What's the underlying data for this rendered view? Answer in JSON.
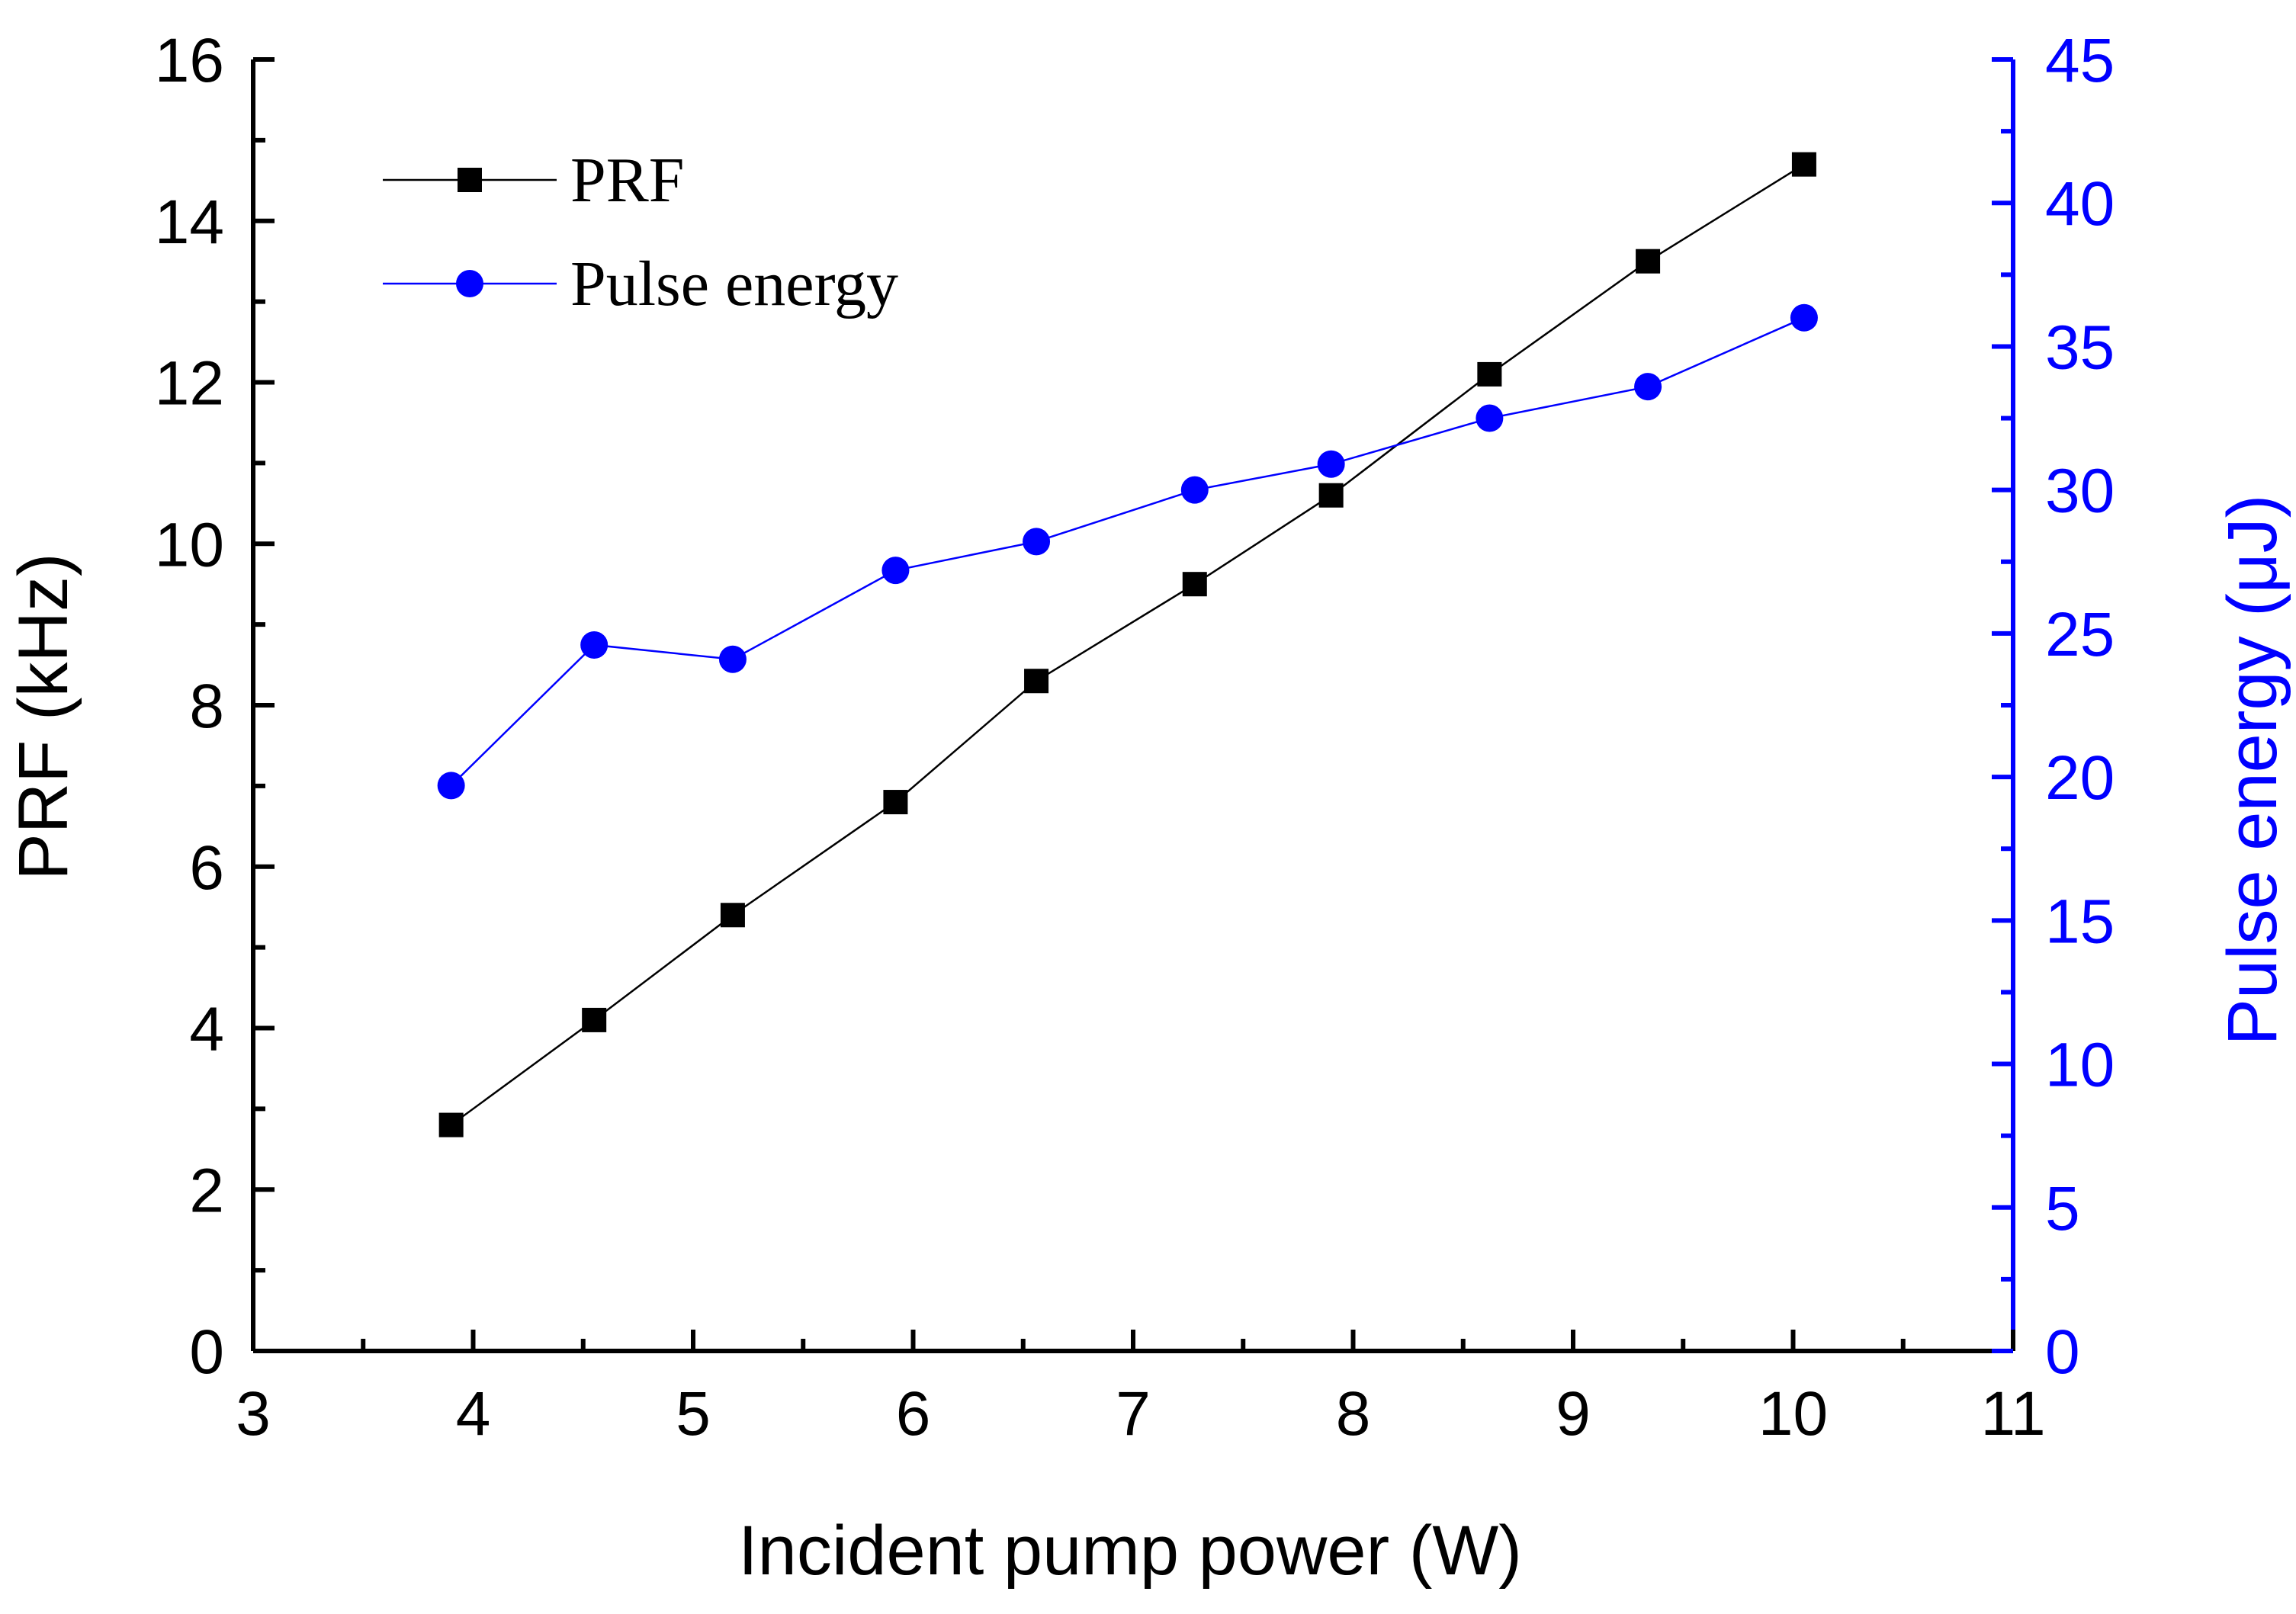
{
  "chart_data": {
    "type": "line",
    "title": "",
    "xlabel": "Incident pump power (W)",
    "ylabel": "PRF (kHz)",
    "y2label": "Pulse energy (μJ)",
    "xlim": [
      3,
      11
    ],
    "ylim": [
      0,
      16
    ],
    "y2lim": [
      0,
      45
    ],
    "x_ticks": [
      "3",
      "4",
      "5",
      "6",
      "7",
      "8",
      "9",
      "10",
      "11"
    ],
    "y_ticks": [
      "0",
      "2",
      "4",
      "6",
      "8",
      "10",
      "12",
      "14",
      "16"
    ],
    "y2_ticks": [
      "0",
      "5",
      "10",
      "15",
      "20",
      "25",
      "30",
      "35",
      "40",
      "45"
    ],
    "legend_position": "top-left",
    "colors": {
      "prf": "#000000",
      "energy": "#0000ff",
      "axis": "#000000",
      "right_axis": "#0000ff"
    },
    "series": [
      {
        "name": "PRF",
        "axis": "left",
        "marker": "square",
        "x": [
          3.9,
          4.55,
          5.18,
          5.92,
          6.56,
          7.28,
          7.9,
          8.62,
          9.34,
          10.05
        ],
        "values": [
          2.8,
          4.1,
          5.4,
          6.8,
          8.3,
          9.5,
          10.6,
          12.1,
          13.5,
          14.7
        ]
      },
      {
        "name": "Pulse energy",
        "axis": "right",
        "marker": "circle",
        "x": [
          3.9,
          4.55,
          5.18,
          5.92,
          6.56,
          7.28,
          7.9,
          8.62,
          9.34,
          10.05
        ],
        "values": [
          19.7,
          24.6,
          24.1,
          27.2,
          28.2,
          30.0,
          30.9,
          32.5,
          33.6,
          36.0
        ]
      }
    ]
  }
}
